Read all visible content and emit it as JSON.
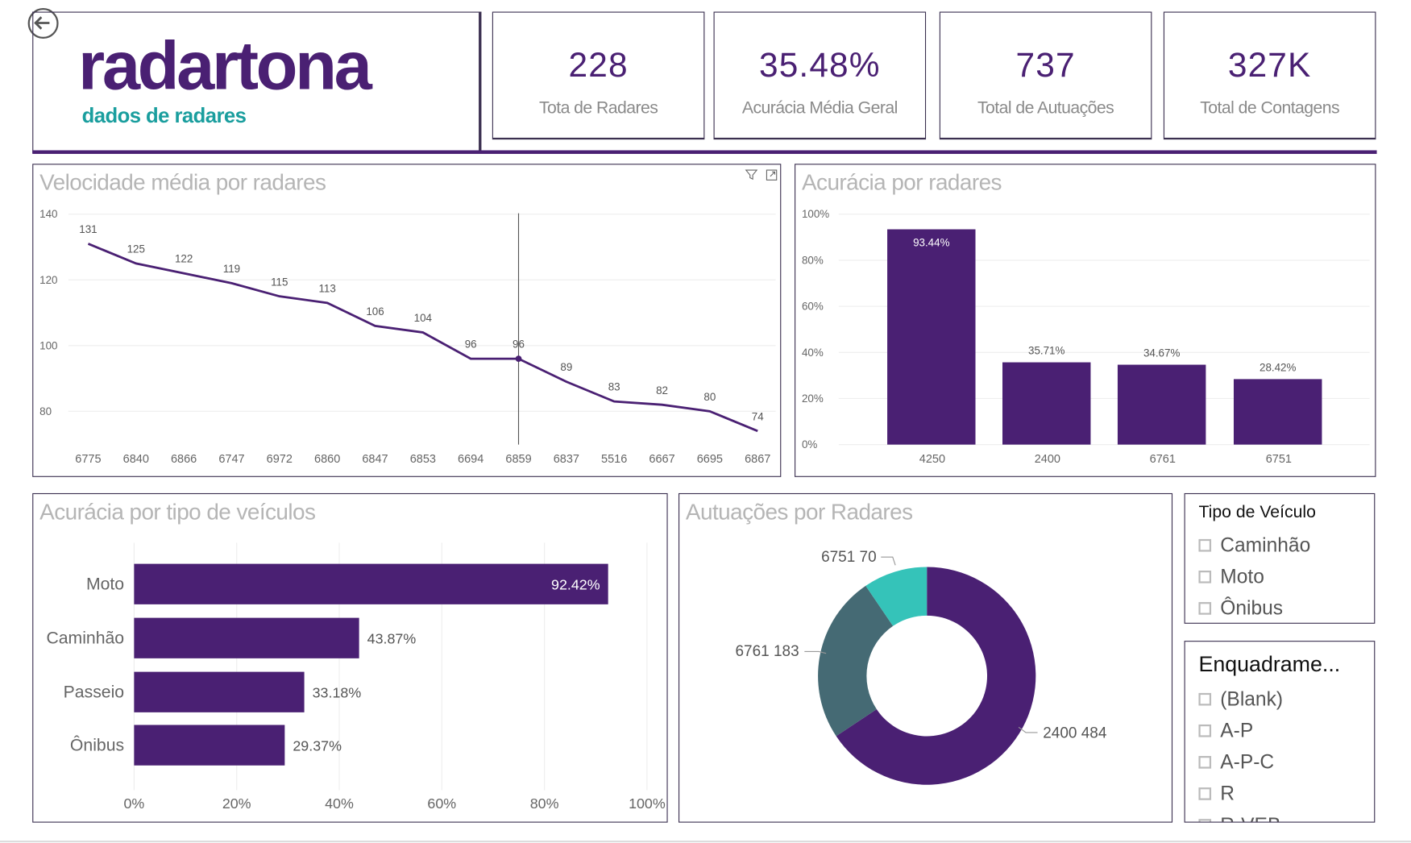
{
  "logo": {
    "name": "radartona",
    "tagline": "dados de radares"
  },
  "kpis": [
    {
      "value": "228",
      "label": "Tota de Radares"
    },
    {
      "value": "35.48%",
      "label": "Acurácia Média Geral"
    },
    {
      "value": "737",
      "label": "Total de Autuações"
    },
    {
      "value": "327K",
      "label": "Total de Contagens"
    }
  ],
  "colors": {
    "purple": "#4a2073",
    "teal": "#35c3b9",
    "slate": "#456a74",
    "logo_teal": "#1a9e9e"
  },
  "chart_data": [
    {
      "type": "line",
      "title": "Velocidade média por radares",
      "categories": [
        "6775",
        "6840",
        "6866",
        "6747",
        "6972",
        "6860",
        "6847",
        "6853",
        "6694",
        "6859",
        "6837",
        "5516",
        "6667",
        "6695",
        "6867"
      ],
      "values": [
        131,
        125,
        122,
        119,
        115,
        113,
        106,
        104,
        96,
        96,
        89,
        83,
        82,
        80,
        74
      ],
      "ylim": [
        70,
        140
      ],
      "yticks": [
        "140",
        "120",
        "100",
        "80"
      ],
      "highlight": "6859",
      "grid": true
    },
    {
      "type": "bar",
      "title": "Acurácia por radares",
      "categories": [
        "4250",
        "2400",
        "6761",
        "6751"
      ],
      "values": [
        93.44,
        35.71,
        34.67,
        28.42
      ],
      "labels": [
        "93.44%",
        "35.71%",
        "34.67%",
        "28.42%"
      ],
      "ylim": [
        0,
        100
      ],
      "yticks": [
        "100%",
        "80%",
        "60%",
        "40%",
        "20%",
        "0%"
      ],
      "grid": true
    },
    {
      "type": "bar",
      "orientation": "horizontal",
      "title": "Acurácia por tipo de veículos",
      "categories": [
        "Moto",
        "Caminhão",
        "Passeio",
        "Ônibus"
      ],
      "values": [
        92.42,
        43.87,
        33.18,
        29.37
      ],
      "labels": [
        "92.42%",
        "43.87%",
        "33.18%",
        "29.37%"
      ],
      "xlim": [
        0,
        100
      ],
      "xticks": [
        "0%",
        "20%",
        "40%",
        "60%",
        "80%",
        "100%"
      ],
      "grid": true
    },
    {
      "type": "pie",
      "donut": true,
      "title": "Autuações por Radares",
      "categories": [
        "2400",
        "6761",
        "6751"
      ],
      "values": [
        484,
        183,
        70
      ],
      "labels": [
        "2400 484",
        "6761 183",
        "6751 70"
      ]
    }
  ],
  "slicers": [
    {
      "title": "Tipo de Veículo",
      "items": [
        "Caminhão",
        "Moto",
        "Ônibus"
      ]
    },
    {
      "title": "Enquadrame...",
      "items": [
        "(Blank)",
        "A-P",
        "A-P-C",
        "R",
        "R-VEB"
      ]
    }
  ]
}
